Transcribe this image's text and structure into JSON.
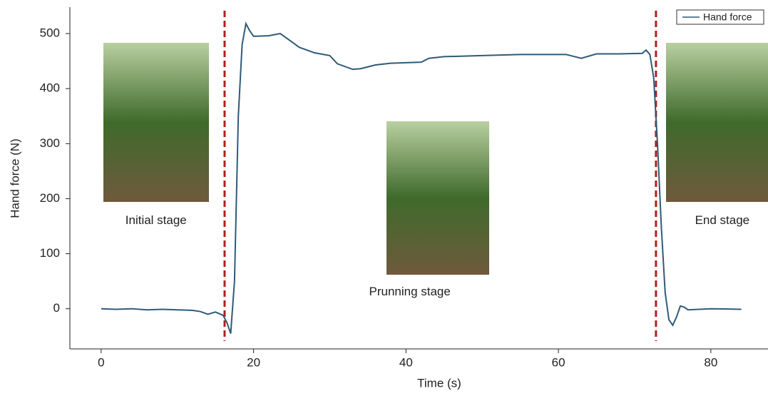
{
  "chart_data": {
    "type": "line",
    "xlabel": "Time (s)",
    "ylabel": "Hand force (N)",
    "series": [
      {
        "name": "Hand force",
        "color": "#2f5b78",
        "x": [
          0,
          2,
          4,
          6,
          8,
          10,
          12,
          13,
          14,
          15,
          16,
          16.5,
          17,
          17.5,
          18,
          18.5,
          19,
          19.5,
          20,
          22,
          23.5,
          25,
          26,
          28,
          30,
          31,
          33,
          34,
          36,
          38,
          40,
          42,
          43,
          45,
          50,
          55,
          61,
          63,
          65,
          68,
          71,
          71.5,
          72,
          72.5,
          73,
          73.5,
          74,
          74.5,
          75,
          75.5,
          76,
          76.5,
          77,
          80,
          84
        ],
        "values": [
          0,
          -1,
          0,
          -2,
          -1,
          -2,
          -3,
          -5,
          -10,
          -6,
          -12,
          -25,
          -45,
          50,
          350,
          480,
          518,
          505,
          495,
          496,
          500,
          485,
          475,
          465,
          460,
          445,
          435,
          436,
          443,
          446,
          447,
          448,
          455,
          458,
          460,
          462,
          462,
          455,
          463,
          463,
          464,
          470,
          462,
          420,
          300,
          150,
          30,
          -20,
          -30,
          -15,
          5,
          3,
          -2,
          0,
          -1
        ]
      }
    ],
    "vlines": [
      16.2,
      72.8
    ],
    "vline_color": "#b0201c",
    "annotations": [
      {
        "text": "Initial stage",
        "x": 7.2,
        "y": 160
      },
      {
        "text": "Prunning stage",
        "x": 40.5,
        "y": 30
      },
      {
        "text": "End stage",
        "x": 81.5,
        "y": 160
      }
    ],
    "xlim": [
      -4.1,
      87.5
    ],
    "ylim": [
      -73,
      548
    ],
    "xticks": [
      0,
      20,
      40,
      60,
      80
    ],
    "yticks": [
      0,
      100,
      200,
      300,
      400,
      500
    ],
    "legend": "upper right"
  }
}
